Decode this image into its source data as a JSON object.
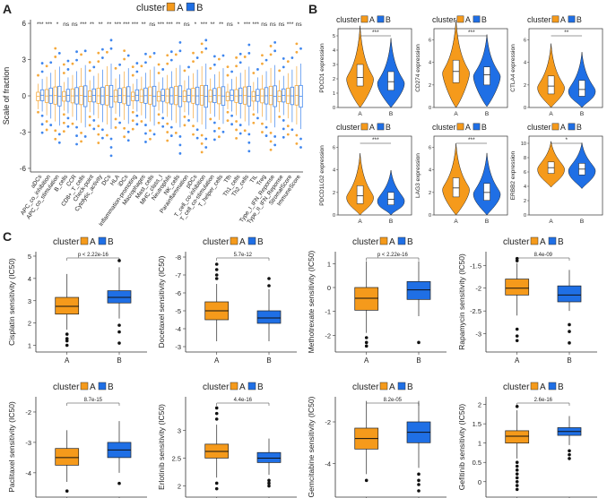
{
  "colors": {
    "A": "#f59a1b",
    "B": "#1f6fe5",
    "A_light": "#f5a93c",
    "B_light": "#3f86ee",
    "axis": "#333333"
  },
  "legend": {
    "title": "cluster",
    "labels": [
      "A",
      "B"
    ]
  },
  "panels": {
    "A": {
      "letter": "A"
    },
    "B": {
      "letter": "B"
    },
    "C": {
      "letter": "C"
    }
  },
  "chart_data": [
    {
      "id": "A",
      "type": "boxplot",
      "title": "",
      "ylabel": "Scale of fraction",
      "ylim": [
        -6.3,
        6.3
      ],
      "yticks": [
        -6,
        -3,
        0,
        3,
        6
      ],
      "categories": [
        "aDCs",
        "APC_co_inhibition",
        "APC_co_stimulation",
        "B_cells",
        "CCR",
        "CD8+_T_cells",
        "Check-point",
        "Cytolytic_activity",
        "DCs",
        "HLA",
        "iDCs",
        "Inflammation-promoting",
        "Macrophages",
        "Mast_cells",
        "MHC_class_I",
        "Neutrophils",
        "NK_cells",
        "Parainflammation",
        "pDCs",
        "T_cell_co-inhibition",
        "T_cell_co-stimulation",
        "T_helper_cells",
        "Tfh",
        "Th1_cells",
        "Th2_cells",
        "TIL",
        "Treg",
        "Type_I_IFN_Reponse",
        "Type_II_IFN_Reponse",
        "StromalScore",
        "ImmuneScore"
      ],
      "significance": [
        "***",
        "***",
        "*",
        "ns",
        "ns",
        "***",
        "**",
        "**",
        "**",
        "***",
        "***",
        "***",
        "**",
        "ns",
        "***",
        "***",
        "**",
        "ns",
        "*",
        "***",
        "**",
        "**",
        "ns",
        "*",
        "***",
        "***",
        "ns",
        "ns",
        "ns",
        "***",
        "ns"
      ]
    },
    {
      "id": "B",
      "type": "violin",
      "groups": [
        "A",
        "B"
      ],
      "plots": [
        {
          "ylabel": "PDCD1 expression",
          "sig": "***",
          "yticks": [
            0,
            1,
            2,
            3,
            4,
            5
          ],
          "ylim": [
            0,
            5.5
          ],
          "A": [
            1.5,
            2.1,
            3.0
          ],
          "B": [
            1.2,
            1.8,
            2.5
          ]
        },
        {
          "ylabel": "CD274 expression",
          "sig": "***",
          "yticks": [
            0,
            2,
            4,
            6
          ],
          "ylim": [
            0,
            7
          ],
          "A": [
            2.2,
            3.2,
            4.2
          ],
          "B": [
            2.0,
            2.9,
            3.6
          ]
        },
        {
          "ylabel": "CTLA4 expression",
          "sig": "**",
          "yticks": [
            0,
            2,
            4,
            6
          ],
          "ylim": [
            0,
            7
          ],
          "A": [
            1.2,
            1.9,
            2.8
          ],
          "B": [
            1.0,
            1.6,
            2.4
          ]
        },
        {
          "ylabel": "PDCD1LG2 expression",
          "sig": "***",
          "yticks": [
            0,
            2,
            4,
            6
          ],
          "ylim": [
            0,
            7
          ],
          "A": [
            1.0,
            1.7,
            2.6
          ],
          "B": [
            0.9,
            1.4,
            2.0
          ]
        },
        {
          "ylabel": "LAG3 expression",
          "sig": "***",
          "yticks": [
            0,
            2,
            4,
            6
          ],
          "ylim": [
            0,
            7
          ],
          "A": [
            1.6,
            2.4,
            3.3
          ],
          "B": [
            1.3,
            2.0,
            2.8
          ]
        },
        {
          "ylabel": "ERBB2 expression",
          "sig": "*",
          "yticks": [
            0,
            2,
            4,
            6,
            8,
            10
          ],
          "ylim": [
            0,
            11
          ],
          "A": [
            5.8,
            6.6,
            7.4
          ],
          "B": [
            5.6,
            6.4,
            7.2
          ]
        }
      ]
    },
    {
      "id": "C",
      "type": "boxplot",
      "groups": [
        "A",
        "B"
      ],
      "plots": [
        {
          "ylabel": "Cisplatin sensitivity (IC50)",
          "pvalue": "p < 2.22e-16",
          "yticks": [
            1,
            2,
            3,
            4,
            5
          ],
          "ylim": [
            0.7,
            5.2
          ],
          "A": {
            "wlo": 1.7,
            "q1": 2.4,
            "med": 2.75,
            "q3": 3.15,
            "whi": 4.2,
            "out": [
              1.0,
              1.2,
              1.3,
              1.5
            ]
          },
          "B": {
            "wlo": 2.2,
            "q1": 2.9,
            "med": 3.15,
            "q3": 3.45,
            "whi": 4.5,
            "out": [
              1.1,
              1.6,
              1.9,
              4.8
            ]
          }
        },
        {
          "ylabel": "Docetaxel sensitivity (IC50)",
          "pvalue": "5.7e-12",
          "yticks": [
            -3,
            -4,
            -5,
            -6,
            -7,
            -8
          ],
          "ylim": [
            -8.3,
            -2.7
          ],
          "reverse": true,
          "A": {
            "wlo": -6.5,
            "q1": -5.5,
            "med": -5.0,
            "q3": -4.5,
            "whi": -3.3,
            "out": [
              -6.8,
              -7.0,
              -7.3,
              -7.6
            ]
          },
          "B": {
            "wlo": -6.2,
            "q1": -5.0,
            "med": -4.6,
            "q3": -4.3,
            "whi": -3.3,
            "out": [
              -6.4,
              -6.8
            ]
          }
        },
        {
          "ylabel": "Methotrexate sensitivity (IC50)",
          "pvalue": "p < 2.22e-16",
          "yticks": [
            1,
            0,
            -1,
            -2
          ],
          "ylim": [
            -2.7,
            1.5
          ],
          "A": {
            "wlo": -1.9,
            "q1": -0.95,
            "med": -0.45,
            "q3": 0.0,
            "whi": 1.1,
            "out": [
              -2.1,
              -2.3,
              -2.45
            ]
          },
          "B": {
            "wlo": -1.2,
            "q1": -0.5,
            "med": -0.1,
            "q3": 0.25,
            "whi": 1.1,
            "out": [
              -2.3
            ]
          }
        },
        {
          "ylabel": "Rapamycin sensitivity (IC50)",
          "pvalue": "8.4e-09",
          "yticks": [
            -1.5,
            -2,
            -2.5,
            -3
          ],
          "ylim": [
            -3.4,
            -1.2
          ],
          "A": {
            "wlo": -2.6,
            "q1": -2.15,
            "med": -2.0,
            "q3": -1.8,
            "whi": -1.45,
            "out": [
              -2.9,
              -3.05,
              -3.15,
              -1.4,
              -1.35
            ]
          },
          "B": {
            "wlo": -2.5,
            "q1": -2.3,
            "med": -2.15,
            "q3": -1.95,
            "whi": -1.6,
            "out": [
              -2.8,
              -2.95,
              -3.2
            ]
          }
        },
        {
          "ylabel": "Paclitaxel sensitivity (IC50)",
          "pvalue": "8.7e-15",
          "yticks": [
            -2,
            -3,
            -4
          ],
          "ylim": [
            -4.8,
            -1.5
          ],
          "A": {
            "wlo": -4.3,
            "q1": -3.75,
            "med": -3.5,
            "q3": -3.2,
            "whi": -2.6,
            "out": [
              -4.6
            ]
          },
          "B": {
            "wlo": -4.0,
            "q1": -3.5,
            "med": -3.25,
            "q3": -3.0,
            "whi": -2.3,
            "out": [
              -4.35
            ]
          }
        },
        {
          "ylabel": "Erlotinib sensitivity (IC50)",
          "pvalue": "4.4e-16",
          "yticks": [
            2.0,
            2.5,
            3.0
          ],
          "ylim": [
            1.8,
            3.6
          ],
          "A": {
            "wlo": 2.15,
            "q1": 2.5,
            "med": 2.62,
            "q3": 2.75,
            "whi": 3.1,
            "out": [
              2.05,
              1.95,
              3.2,
              3.3,
              3.4
            ]
          },
          "B": {
            "wlo": 2.2,
            "q1": 2.42,
            "med": 2.5,
            "q3": 2.6,
            "whi": 2.85,
            "out": [
              2.1,
              2.05,
              2.0
            ]
          }
        },
        {
          "ylabel": "Gemcitabine sensitivity (IC50)",
          "pvalue": "8.2e-05",
          "yticks": [
            -2,
            -4
          ],
          "ylim": [
            -5.6,
            -0.8
          ],
          "A": {
            "wlo": -4.5,
            "q1": -3.3,
            "med": -2.8,
            "q3": -2.3,
            "whi": -1.0,
            "out": [
              -4.8
            ]
          },
          "B": {
            "wlo": -4.2,
            "q1": -3.0,
            "med": -2.5,
            "q3": -2.0,
            "whi": -1.0,
            "out": [
              -4.5,
              -4.8,
              -5.0,
              -5.3
            ]
          }
        },
        {
          "ylabel": "Gefitinib sensitivity (IC50)",
          "pvalue": "2.6e-16",
          "yticks": [
            0.0,
            0.5,
            1.0,
            1.5,
            2.0
          ],
          "ylim": [
            -0.4,
            2.2
          ],
          "A": {
            "wlo": 0.6,
            "q1": 1.0,
            "med": 1.18,
            "q3": 1.32,
            "whi": 1.85,
            "out": [
              0.5,
              0.4,
              0.3,
              0.2,
              0.1,
              0.0,
              -0.1,
              -0.2,
              1.95
            ]
          },
          "B": {
            "wlo": 0.95,
            "q1": 1.2,
            "med": 1.3,
            "q3": 1.4,
            "whi": 1.7,
            "out": [
              0.8,
              0.7,
              0.6
            ]
          }
        }
      ]
    }
  ]
}
